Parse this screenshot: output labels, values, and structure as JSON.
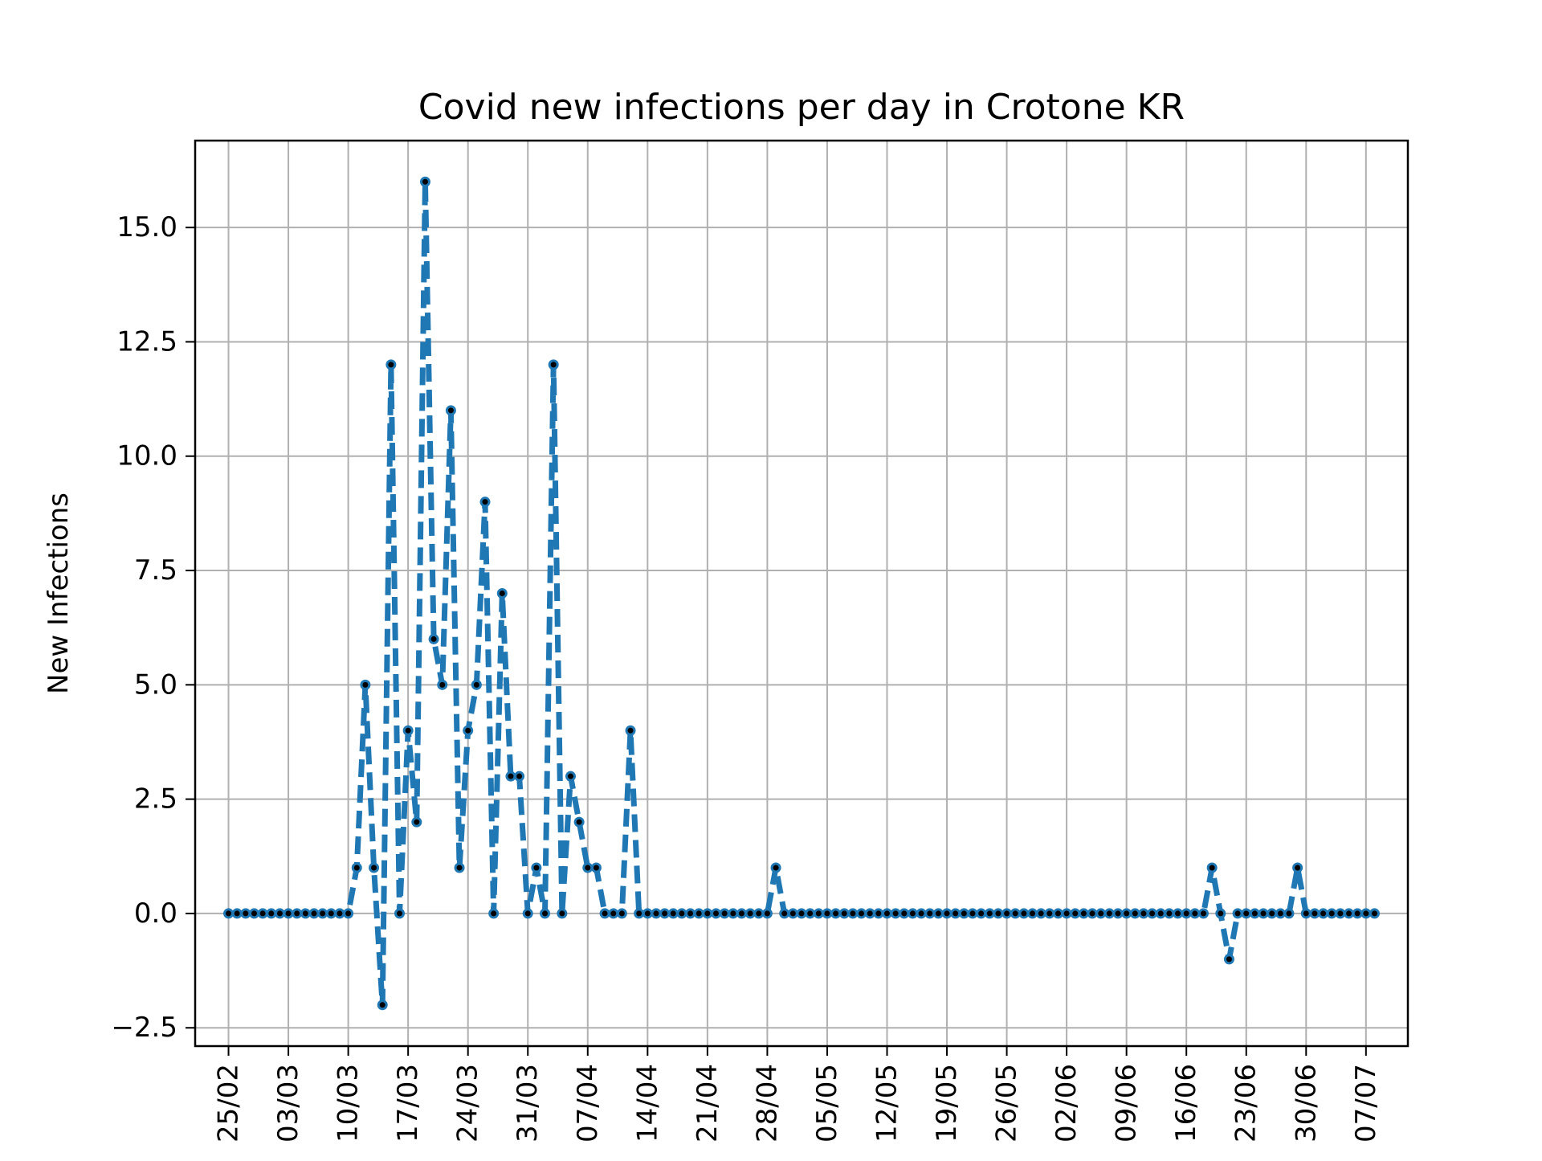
{
  "chart_data": {
    "type": "line",
    "title": "Covid new infections per day in Crotone KR",
    "xlabel": "",
    "ylabel": "New Infections",
    "x_start": "25/02",
    "x_ticks": [
      "25/02",
      "03/03",
      "10/03",
      "17/03",
      "24/03",
      "31/03",
      "07/04",
      "14/04",
      "21/04",
      "28/04",
      "05/05",
      "12/05",
      "19/05",
      "26/05",
      "02/06",
      "09/06",
      "16/06",
      "23/06",
      "30/06",
      "07/07"
    ],
    "y_ticks": [
      "−2.5",
      "0.0",
      "2.5",
      "5.0",
      "7.5",
      "10.0",
      "12.5",
      "15.0"
    ],
    "ylim": [
      -2.9,
      16.9
    ],
    "xlim_days": [
      -3.9,
      137.9
    ],
    "grid": true,
    "line_style": "dashed",
    "line_color": "#1f77b4",
    "marker_color": "#000000",
    "series": [
      {
        "values": [
          0,
          0,
          0,
          0,
          0,
          0,
          0,
          0,
          0,
          0,
          0,
          0,
          0,
          0,
          0,
          1,
          5,
          1,
          -2,
          12,
          0,
          4,
          2,
          16,
          6,
          5,
          11,
          1,
          4,
          5,
          9,
          0,
          7,
          3,
          3,
          0,
          1,
          0,
          12,
          0,
          3,
          2,
          1,
          1,
          0,
          0,
          0,
          4,
          0,
          0,
          0,
          0,
          0,
          0,
          0,
          0,
          0,
          0,
          0,
          0,
          0,
          0,
          0,
          0,
          1,
          0,
          0,
          0,
          0,
          0,
          0,
          0,
          0,
          0,
          0,
          0,
          0,
          0,
          0,
          0,
          0,
          0,
          0,
          0,
          0,
          0,
          0,
          0,
          0,
          0,
          0,
          0,
          0,
          0,
          0,
          0,
          0,
          0,
          0,
          0,
          0,
          0,
          0,
          0,
          0,
          0,
          0,
          0,
          0,
          0,
          0,
          0,
          0,
          0,
          0,
          1,
          0,
          -1,
          0,
          0,
          0,
          0,
          0,
          0,
          0,
          1,
          0,
          0,
          0,
          0,
          0,
          0,
          0,
          0,
          0
        ]
      }
    ]
  }
}
